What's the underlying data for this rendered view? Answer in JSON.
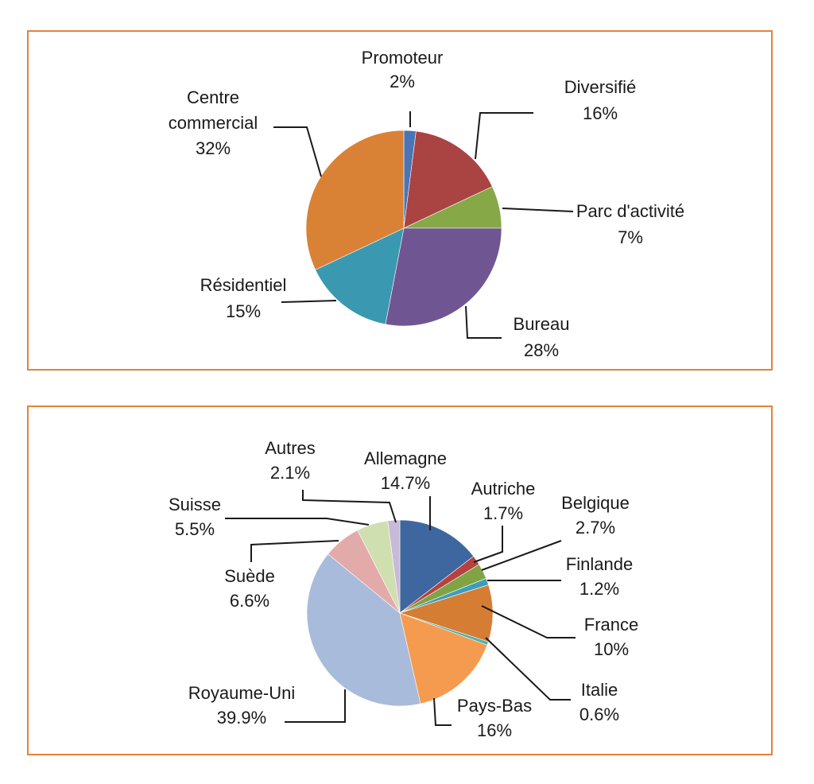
{
  "chart_data": [
    {
      "type": "pie",
      "title": "",
      "slices": [
        {
          "label": "Promoteur",
          "value": 2,
          "display": "2%",
          "color": "#4a74b4"
        },
        {
          "label": "Diversifié",
          "value": 16,
          "display": "16%",
          "color": "#a94442"
        },
        {
          "label": "Parc d'activité",
          "value": 7,
          "display": "7%",
          "color": "#86a846"
        },
        {
          "label": "Bureau",
          "value": 28,
          "display": "28%",
          "color": "#6f5693"
        },
        {
          "label": "Résidentiel",
          "value": 15,
          "display": "15%",
          "color": "#3a99b0"
        },
        {
          "label": "Centre commercial",
          "value": 32,
          "display": "32%",
          "color": "#d98236"
        }
      ]
    },
    {
      "type": "pie",
      "title": "",
      "slices": [
        {
          "label": "Allemagne",
          "value": 14.7,
          "display": "14.7%",
          "color": "#3e679f"
        },
        {
          "label": "Autriche",
          "value": 1.7,
          "display": "1.7%",
          "color": "#b7413f"
        },
        {
          "label": "Belgique",
          "value": 2.7,
          "display": "2.7%",
          "color": "#80a344"
        },
        {
          "label": "Finlande",
          "value": 1.2,
          "display": "1.2%",
          "color": "#3e9dba"
        },
        {
          "label": "France",
          "value": 10,
          "display": "10%",
          "color": "#d67d34"
        },
        {
          "label": "Italie",
          "value": 0.6,
          "display": "0.6%",
          "color": "#4bb3b0"
        },
        {
          "label": "Pays-Bas",
          "value": 16,
          "display": "16%",
          "color": "#f59b4f"
        },
        {
          "label": "Royaume-Uni",
          "value": 39.9,
          "display": "39.9%",
          "color": "#a9bbdb"
        },
        {
          "label": "Suède",
          "value": 6.6,
          "display": "6.6%",
          "color": "#e3aaaa"
        },
        {
          "label": "Suisse",
          "value": 5.5,
          "display": "5.5%",
          "color": "#d0dfb0"
        },
        {
          "label": "Autres",
          "value": 2.1,
          "display": "2.1%",
          "color": "#c7b9d8"
        }
      ]
    }
  ]
}
